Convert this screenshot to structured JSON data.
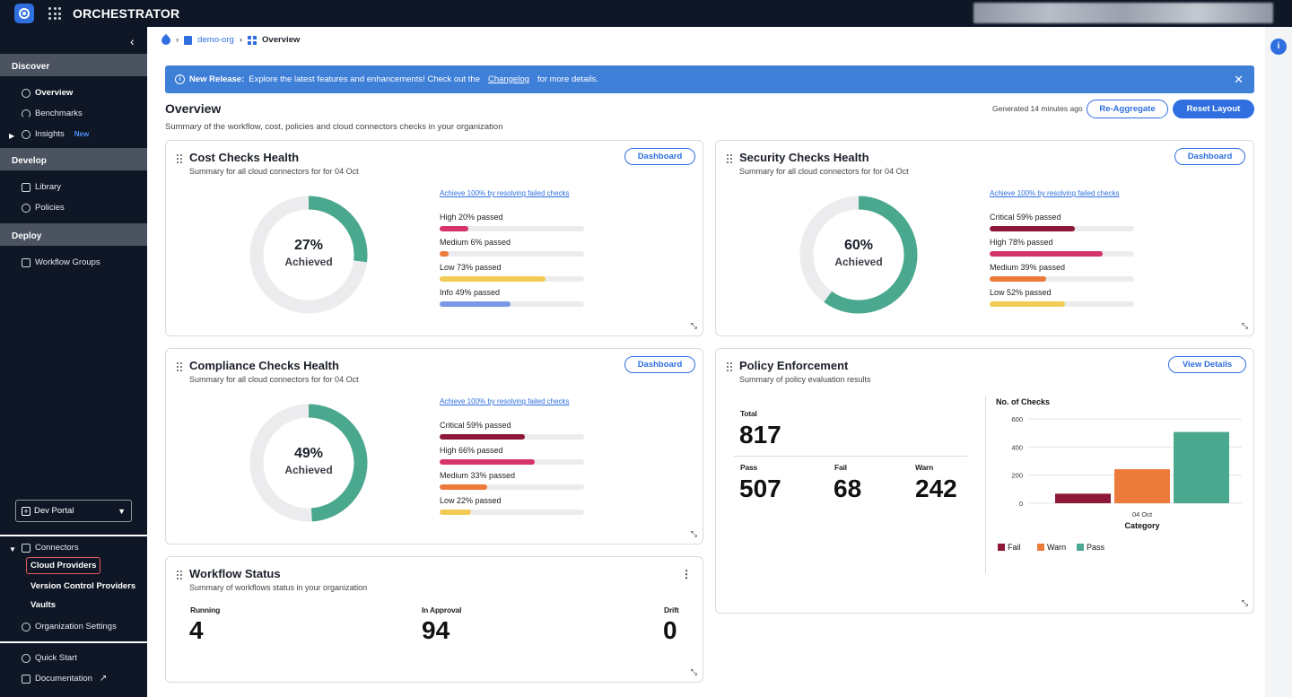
{
  "app": {
    "title": "ORCHESTRATOR"
  },
  "sidebar": {
    "sections": {
      "discover": "Discover",
      "develop": "Develop",
      "deploy": "Deploy"
    },
    "items": {
      "overview": "Overview",
      "benchmarks": "Benchmarks",
      "insights": "Insights",
      "insights_badge": "New",
      "library": "Library",
      "policies": "Policies",
      "workflow_groups": "Workflow Groups"
    },
    "dev_portal": "Dev Portal",
    "connectors": {
      "label": "Connectors",
      "children": [
        "Cloud Providers",
        "Version Control Providers",
        "Vaults"
      ]
    },
    "org_settings": "Organization Settings",
    "quick_start": "Quick Start",
    "documentation": "Documentation"
  },
  "breadcrumb": {
    "org": "demo-org",
    "current": "Overview"
  },
  "banner": {
    "bold": "New Release:",
    "text": "Explore the latest features and enhancements! Check out the",
    "link": "Changelog",
    "tail": "for more details."
  },
  "page": {
    "title": "Overview",
    "subtitle": "Summary of the workflow, cost, policies and cloud connectors checks in your organization",
    "generated": "Generated 14 minutes ago",
    "reaggregate": "Re-Aggregate",
    "reset_layout": "Reset Layout"
  },
  "cards": {
    "cost": {
      "title": "Cost Checks Health",
      "subtitle": "Summary for all cloud connectors for for 04 Oct",
      "button": "Dashboard",
      "percent": "27%",
      "percent_value": 27,
      "achieved": "Achieved",
      "achieve_link": "Achieve 100% by resolving failed checks",
      "bars": [
        {
          "label": "High 20% passed",
          "value": 20,
          "color": "#d6336c"
        },
        {
          "label": "Medium 6% passed",
          "value": 6,
          "color": "#ec7a3b"
        },
        {
          "label": "Low 73% passed",
          "value": 73,
          "color": "#f2cb55"
        },
        {
          "label": "Info 49% passed",
          "value": 49,
          "color": "#7b98e6"
        }
      ]
    },
    "security": {
      "title": "Security Checks Health",
      "subtitle": "Summary for all cloud connectors for for 04 Oct",
      "button": "Dashboard",
      "percent": "60%",
      "percent_value": 60,
      "achieved": "Achieved",
      "achieve_link": "Achieve 100% by resolving failed checks",
      "bars": [
        {
          "label": "Critical 59% passed",
          "value": 59,
          "color": "#8e1838"
        },
        {
          "label": "High 78% passed",
          "value": 78,
          "color": "#d6336c"
        },
        {
          "label": "Medium 39% passed",
          "value": 39,
          "color": "#ec7a3b"
        },
        {
          "label": "Low 52% passed",
          "value": 52,
          "color": "#f2cb55"
        }
      ]
    },
    "compliance": {
      "title": "Compliance Checks Health",
      "subtitle": "Summary for all cloud connectors for for 04 Oct",
      "button": "Dashboard",
      "percent": "49%",
      "percent_value": 49,
      "achieved": "Achieved",
      "achieve_link": "Achieve 100% by resolving failed checks",
      "bars": [
        {
          "label": "Critical 59% passed",
          "value": 59,
          "color": "#8e1838"
        },
        {
          "label": "High 66% passed",
          "value": 66,
          "color": "#d6336c"
        },
        {
          "label": "Medium 33% passed",
          "value": 33,
          "color": "#ec7a3b"
        },
        {
          "label": "Low 22% passed",
          "value": 22,
          "color": "#f2cb55"
        }
      ]
    },
    "policy": {
      "title": "Policy Enforcement",
      "subtitle": "Summary of policy evaluation results",
      "button": "View Details",
      "total_label": "Total",
      "total": "817",
      "pass_label": "Pass",
      "pass": "507",
      "fail_label": "Fail",
      "fail": "68",
      "warn_label": "Warn",
      "warn": "242"
    },
    "workflow": {
      "title": "Workflow Status",
      "subtitle": "Summary of workflows status in your organization",
      "running_label": "Running",
      "running": "4",
      "approval_label": "In Approval",
      "approval": "94",
      "drift_label": "Drift",
      "drift": "0"
    }
  },
  "colors": {
    "accent": "#2f6fe0",
    "donut": "#4aa88e",
    "track": "#ececee"
  },
  "chart_data": {
    "type": "bar",
    "title": "No. of Checks",
    "xlabel": "Category",
    "categories": [
      "04 Oct"
    ],
    "yticks": [
      "0",
      "200",
      "400",
      "600"
    ],
    "ylim": [
      0,
      600
    ],
    "grid": true,
    "legend": "bottom",
    "series": [
      {
        "name": "Fail",
        "values": [
          68
        ],
        "color": "#8e1838"
      },
      {
        "name": "Warn",
        "values": [
          242
        ],
        "color": "#ec7a3b"
      },
      {
        "name": "Pass",
        "values": [
          507
        ],
        "color": "#4aa88e"
      }
    ]
  }
}
